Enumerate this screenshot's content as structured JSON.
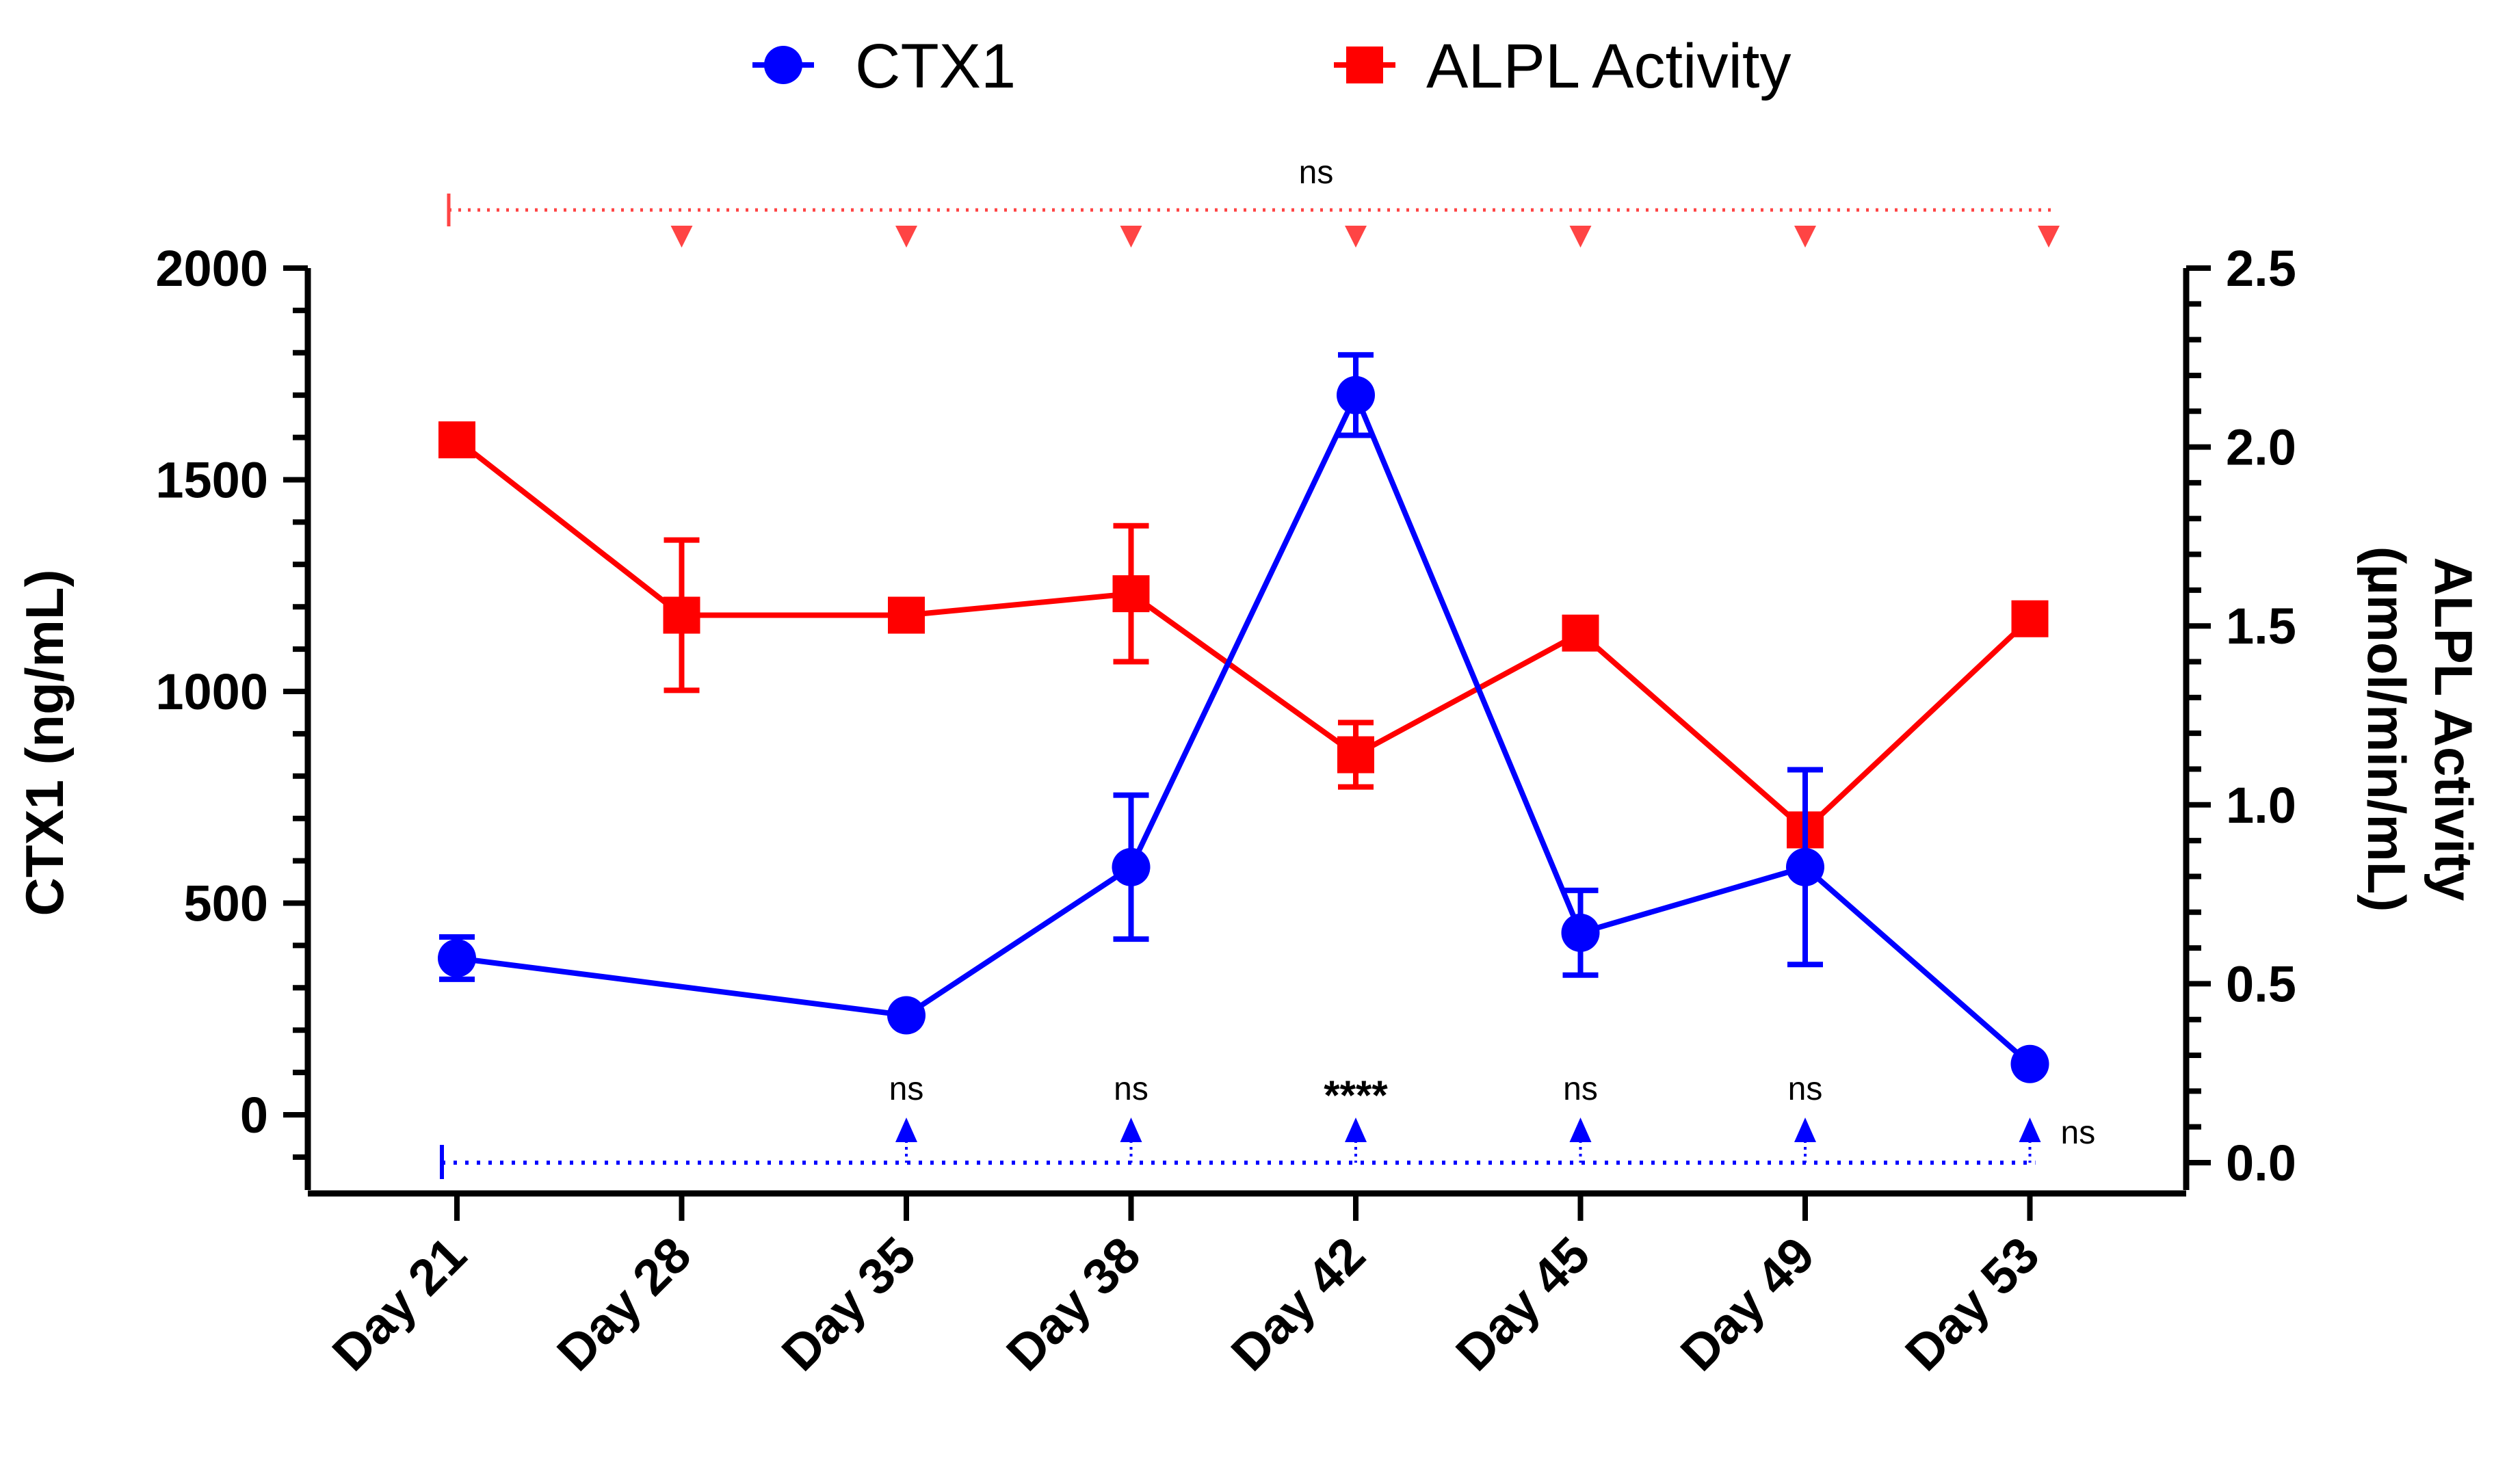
{
  "chart_data": {
    "type": "line",
    "categories": [
      "Day 21",
      "Day 28",
      "Day 35",
      "Day 38",
      "Day 42",
      "Day 45",
      "Day 49",
      "Day 53"
    ],
    "legend_placement": "top-center",
    "grid": false,
    "series": [
      {
        "name": "CTX1",
        "axis": "left",
        "color": "#0000ff",
        "marker": "circle",
        "points": [
          {
            "category": "Day 21",
            "value": 370,
            "err": 50
          },
          {
            "category": "Day 35",
            "value": 235,
            "err": 0
          },
          {
            "category": "Day 38",
            "value": 585,
            "err": 170
          },
          {
            "category": "Day 42",
            "value": 1700,
            "err": 95
          },
          {
            "category": "Day 45",
            "value": 430,
            "err": 100
          },
          {
            "category": "Day 49",
            "value": 585,
            "err": 230
          },
          {
            "category": "Day 53",
            "value": 120,
            "err": 0
          }
        ]
      },
      {
        "name": "ALPL Activity",
        "axis": "right",
        "color": "#ff0000",
        "marker": "square",
        "points": [
          {
            "category": "Day 21",
            "value": 2.02,
            "err": 0
          },
          {
            "category": "Day 28",
            "value": 1.53,
            "err": 0.21
          },
          {
            "category": "Day 35",
            "value": 1.53,
            "err": 0
          },
          {
            "category": "Day 38",
            "value": 1.59,
            "err": 0.19
          },
          {
            "category": "Day 42",
            "value": 1.14,
            "err": 0.09
          },
          {
            "category": "Day 45",
            "value": 1.48,
            "err": 0
          },
          {
            "category": "Day 49",
            "value": 0.93,
            "err": 0
          },
          {
            "category": "Day 53",
            "value": 1.52,
            "err": 0.04
          }
        ]
      }
    ],
    "y_left": {
      "label": "CTX1  (ng/mL)",
      "ylim": [
        -180,
        2000
      ],
      "ticks": [
        0,
        500,
        1000,
        1500,
        2000
      ],
      "minor_step": 100
    },
    "y_right": {
      "label_lines": [
        "ALPL Activity",
        "(µmol/min/mL)"
      ],
      "ylim": [
        0,
        2.5
      ],
      "ticks": [
        "0.0",
        "0.5",
        "1.0",
        "1.5",
        "2.0",
        "2.5"
      ],
      "tick_values": [
        0,
        0.5,
        1.0,
        1.5,
        2.0,
        2.5
      ],
      "minor_step": 0.1
    },
    "significance": {
      "alpl": {
        "reference": "Day 21",
        "color": "#ff4444",
        "targets": [
          "Day 28",
          "Day 35",
          "Day 38",
          "Day 42",
          "Day 45",
          "Day 49",
          "Day 53"
        ],
        "label": "ns"
      },
      "ctx1": {
        "reference": "Day 21",
        "color": "#0000ff",
        "targets": [
          "Day 35",
          "Day 38",
          "Day 42",
          "Day 45",
          "Day 49",
          "Day 53"
        ],
        "labels": [
          {
            "category": "Day 35",
            "text": "ns"
          },
          {
            "category": "Day 38",
            "text": "ns"
          },
          {
            "category": "Day 42",
            "text": "****"
          },
          {
            "category": "Day 45",
            "text": "ns"
          },
          {
            "category": "Day 49",
            "text": "ns"
          },
          {
            "category": "Day 53",
            "text": "ns"
          }
        ]
      }
    }
  }
}
